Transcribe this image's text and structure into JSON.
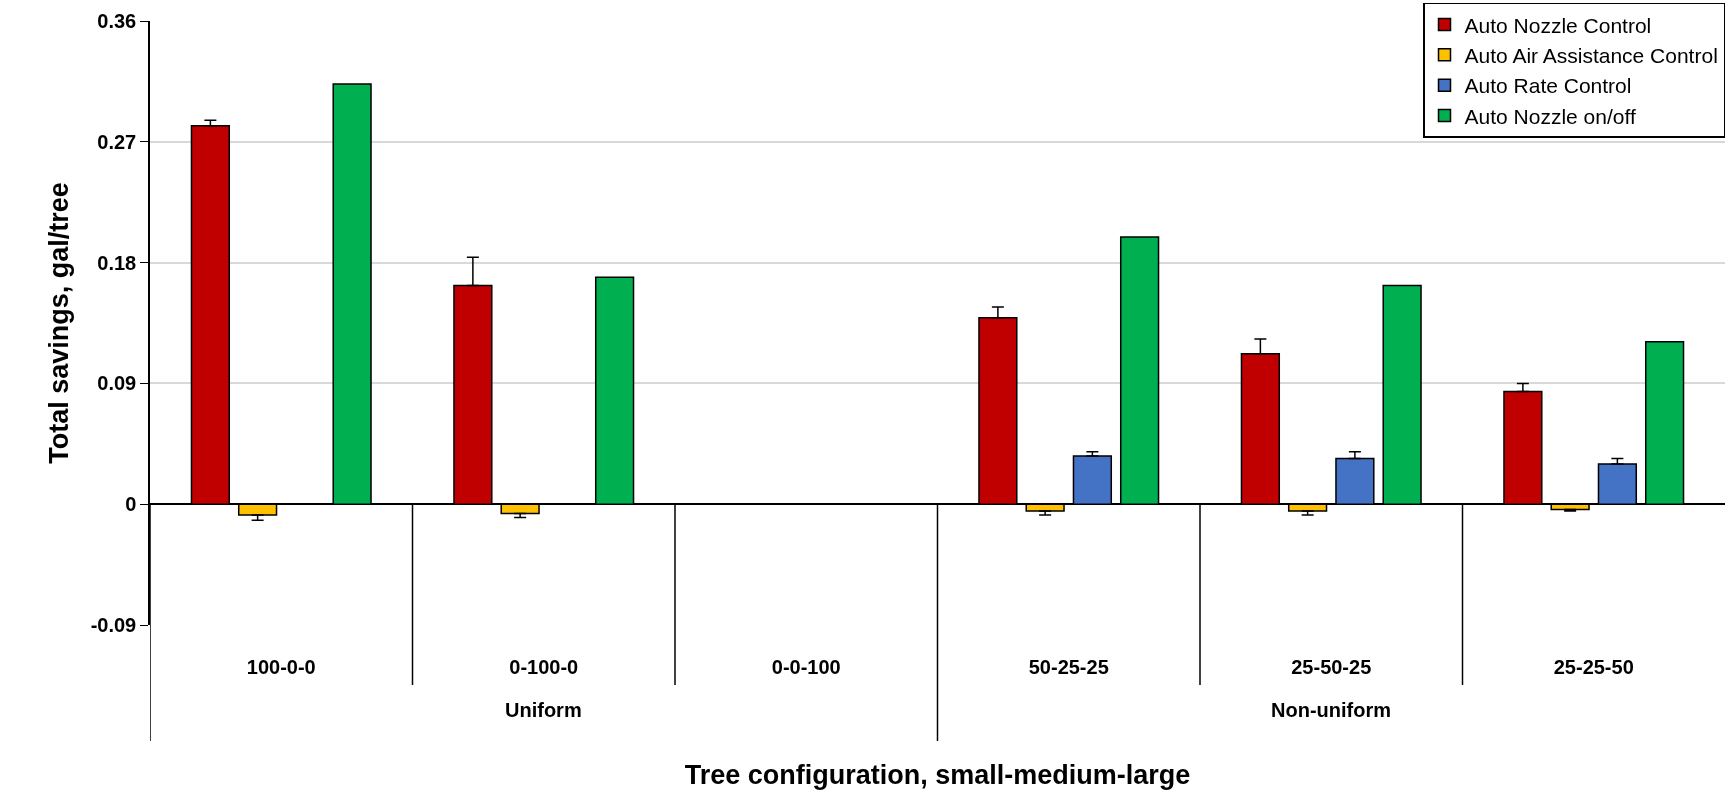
{
  "chart_data": {
    "type": "bar",
    "xlabel": "Tree configuration, small-medium-large",
    "ylabel": "Total savings, gal/tree",
    "categories": [
      "100-0-0",
      "0-100-0",
      "0-0-100",
      "50-25-25",
      "25-50-25",
      "25-25-50"
    ],
    "annotations": [
      "Uniform",
      "Non-uniform"
    ],
    "series": [
      {
        "name": "Auto Nozzle Control",
        "color": "#c00000",
        "values": [
          0.282,
          0.163,
          null,
          0.139,
          0.112,
          0.084
        ],
        "errors": [
          [
            0.282,
            0.286
          ],
          [
            0.163,
            0.184
          ],
          null,
          [
            0.139,
            0.147
          ],
          [
            0.112,
            0.123
          ],
          [
            0.084,
            0.09
          ]
        ]
      },
      {
        "name": "Auto Air Assistance Control",
        "color": "#ffc000",
        "values": [
          -0.008,
          -0.007,
          null,
          -0.005,
          -0.005,
          -0.004
        ],
        "errors": [
          [
            -0.012,
            -0.008
          ],
          [
            -0.01,
            -0.007
          ],
          null,
          [
            -0.008,
            -0.005
          ],
          [
            -0.008,
            -0.005
          ],
          [
            -0.005,
            -0.004
          ]
        ]
      },
      {
        "name": "Auto Rate Control",
        "color": "#4472c4",
        "values": [
          null,
          null,
          null,
          0.036,
          0.034,
          0.03
        ],
        "errors": [
          null,
          null,
          null,
          [
            0.036,
            0.039
          ],
          [
            0.034,
            0.039
          ],
          [
            0.03,
            0.034
          ]
        ]
      },
      {
        "name": "Auto Nozzle on/off",
        "color": "#00b050",
        "values": [
          0.313,
          0.169,
          null,
          0.199,
          0.163,
          0.121
        ]
      }
    ],
    "ylim": [
      -0.09,
      0.36
    ],
    "yticks": [
      -0.09,
      0,
      0.09,
      0.18,
      0.27,
      0.36
    ],
    "grid": "y",
    "legend": "top right"
  }
}
